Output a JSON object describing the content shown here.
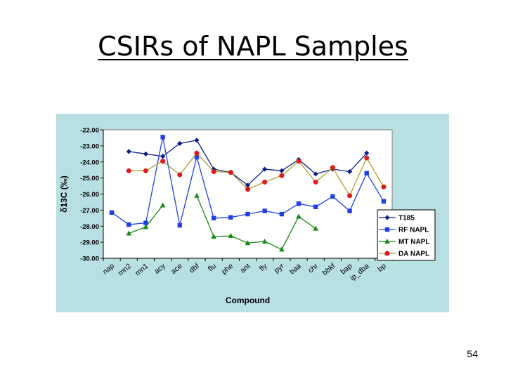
{
  "slide": {
    "title": "CSIRs of NAPL Samples",
    "page_number": "54"
  },
  "colors": {
    "panel_bg": "#b8dfe2",
    "plot_bg": "#ffffff",
    "T185": "#0b1f8a",
    "RF NAPL": "#1f3fe6",
    "MT NAPL": "#118a11",
    "DA NAPL": "#e01a1a",
    "DA_line": "#b09c2a"
  },
  "chart_data": {
    "type": "line",
    "title": "",
    "xlabel": "Compound",
    "ylabel": "δ13C (‰)",
    "ylim": [
      -30,
      -22
    ],
    "yticks": [
      "-22.00",
      "-23.00",
      "-24.00",
      "-25.00",
      "-26.00",
      "-27.00",
      "-28.00",
      "-29.00",
      "-30.00"
    ],
    "ytick_values": [
      -22,
      -23,
      -24,
      -25,
      -26,
      -27,
      -28,
      -29,
      -30
    ],
    "grid": false,
    "legend_position": "right",
    "categories": [
      "nap",
      "mn2",
      "mn1",
      "acy",
      "ace",
      "dbf",
      "flu",
      "phe",
      "ant",
      "fly",
      "pyr",
      "baa",
      "chr",
      "bbkf",
      "bap",
      "ip_dba",
      "bp"
    ],
    "category_labels": [
      "nap",
      "mn2",
      "mn1",
      "acy",
      "ace",
      "dbf",
      "flu",
      "phe",
      "ant",
      "fly",
      "pyr",
      "baa",
      "chr",
      "bbkf",
      "bap",
      "ip_dba",
      "bp"
    ],
    "series": [
      {
        "name": "T185",
        "marker": "diamond",
        "values": [
          null,
          -23.35,
          -23.5,
          -23.65,
          -22.85,
          -22.65,
          -24.45,
          -24.65,
          -25.45,
          -24.45,
          -24.55,
          -23.85,
          -24.75,
          -24.45,
          -24.6,
          -23.45,
          null
        ]
      },
      {
        "name": "RF NAPL",
        "marker": "square",
        "values": [
          -27.15,
          -27.9,
          -27.8,
          -22.45,
          -27.95,
          -23.7,
          -27.5,
          -27.45,
          -27.25,
          -27.05,
          -27.25,
          -26.6,
          -26.8,
          -26.15,
          -27.05,
          -24.7,
          -26.45
        ]
      },
      {
        "name": "MT NAPL",
        "marker": "triangle",
        "values": [
          null,
          -28.45,
          -28.05,
          -26.7,
          null,
          -26.1,
          -28.65,
          -28.6,
          -29.05,
          -28.95,
          -29.45,
          -27.4,
          -28.15,
          null,
          null,
          null,
          null
        ]
      },
      {
        "name": "DA NAPL",
        "marker": "circle",
        "values": [
          null,
          -24.55,
          -24.55,
          -23.95,
          -24.8,
          -23.45,
          -24.6,
          -24.65,
          -25.7,
          -25.25,
          -24.85,
          -23.95,
          -25.25,
          -24.35,
          -26.1,
          -23.75,
          -25.55
        ]
      }
    ]
  }
}
